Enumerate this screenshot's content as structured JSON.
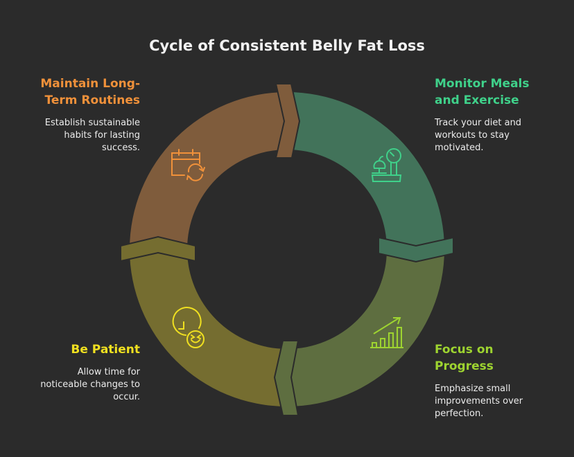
{
  "title": "Cycle of Consistent Belly Fat Loss",
  "steps": [
    {
      "heading": "Maintain Long-Term Routines",
      "text": "Establish sustainable habits for lasting success.",
      "color": "#f0913a",
      "segment_color": "#7f5c3c",
      "icon": "calendar-refresh-icon"
    },
    {
      "heading": "Monitor Meals and Exercise",
      "text": "Track your diet and workouts to stay motivated.",
      "color": "#3fd18a",
      "segment_color": "#42735a",
      "icon": "food-scale-icon"
    },
    {
      "heading": "Focus on Progress",
      "text": "Emphasize small improvements over perfection.",
      "color": "#9ed430",
      "segment_color": "#5e6e40",
      "icon": "growth-chart-icon"
    },
    {
      "heading": "Be Patient",
      "text": "Allow time for noticeable changes to occur.",
      "color": "#f0e020",
      "segment_color": "#756d30",
      "icon": "clock-smile-icon"
    }
  ]
}
